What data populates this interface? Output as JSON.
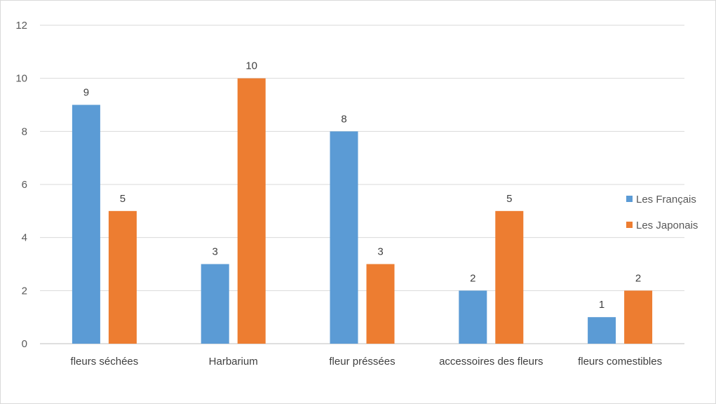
{
  "chart_data": {
    "type": "bar",
    "title": "",
    "xlabel": "",
    "ylabel": "",
    "categories": [
      "fleurs séchées",
      "Harbarium",
      "fleur préssées",
      "accessoires des fleurs",
      "fleurs comestibles"
    ],
    "series": [
      {
        "name": "Les Français",
        "values": [
          9,
          3,
          8,
          2,
          1
        ],
        "color": "#5b9bd5"
      },
      {
        "name": "Les Japonais",
        "values": [
          5,
          10,
          3,
          5,
          2
        ],
        "color": "#ed7d31"
      }
    ],
    "ylim": [
      0,
      12
    ],
    "yticks": [
      0,
      2,
      4,
      6,
      8,
      10,
      12
    ],
    "grid": true,
    "legend_position": "right",
    "data_labels": true,
    "colors": {
      "gridline": "#d9d9d9",
      "axis": "#bfbfbf"
    }
  }
}
